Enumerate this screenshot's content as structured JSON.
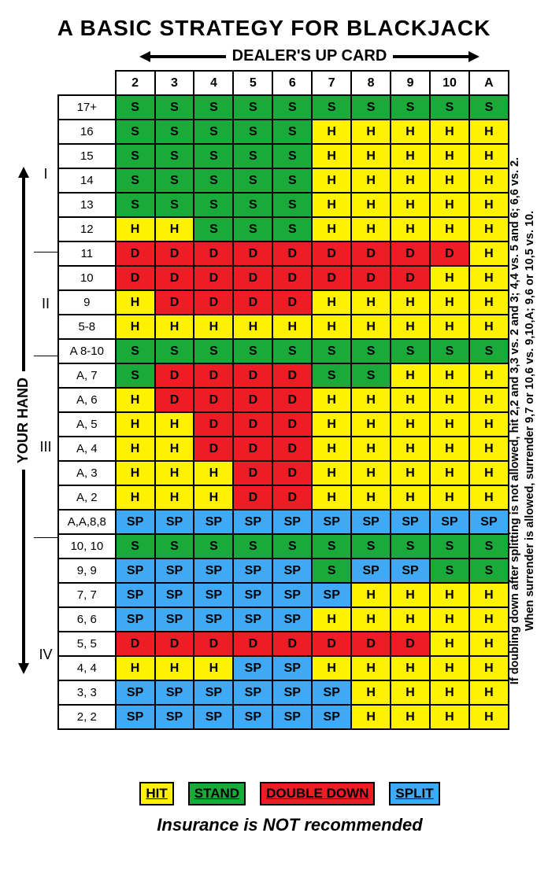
{
  "title": "A BASIC STRATEGY FOR BLACKJACK",
  "dealer_header": "DEALER'S UP CARD",
  "your_hand_label": "YOUR HAND",
  "footer": "Insurance is NOT recommended",
  "sidenote_line1": "If doubling down after splitting is not allowed, hit 2,2 and 3,3 vs. 2 and 3; 4,4 vs. 5 and 6; 6,6 vs. 2.",
  "sidenote_line2": "When surrender is allowed, surrender 9,7 or 10,6 vs. 9,10,A; 9,6 or 10,5 vs. 10.",
  "colors": {
    "H": "#fff200",
    "S": "#1aaa3a",
    "D": "#ee1c25",
    "SP": "#3fa9f5",
    "header_bg": "#ffffff",
    "rowlabel_bg": "#ffffff",
    "border": "#000000",
    "text": "#000000"
  },
  "actions": {
    "H": "H",
    "S": "S",
    "D": "D",
    "SP": "SP"
  },
  "dealer_cards": [
    "2",
    "3",
    "4",
    "5",
    "6",
    "7",
    "8",
    "9",
    "10",
    "A"
  ],
  "sections": [
    {
      "label": "I",
      "rows": 6
    },
    {
      "label": "II",
      "rows": 4
    },
    {
      "label": "III",
      "rows": 7
    },
    {
      "label": "IV",
      "rows": 9
    }
  ],
  "rows": [
    {
      "hand": "17+",
      "cells": [
        "S",
        "S",
        "S",
        "S",
        "S",
        "S",
        "S",
        "S",
        "S",
        "S"
      ]
    },
    {
      "hand": "16",
      "cells": [
        "S",
        "S",
        "S",
        "S",
        "S",
        "H",
        "H",
        "H",
        "H",
        "H"
      ]
    },
    {
      "hand": "15",
      "cells": [
        "S",
        "S",
        "S",
        "S",
        "S",
        "H",
        "H",
        "H",
        "H",
        "H"
      ]
    },
    {
      "hand": "14",
      "cells": [
        "S",
        "S",
        "S",
        "S",
        "S",
        "H",
        "H",
        "H",
        "H",
        "H"
      ]
    },
    {
      "hand": "13",
      "cells": [
        "S",
        "S",
        "S",
        "S",
        "S",
        "H",
        "H",
        "H",
        "H",
        "H"
      ]
    },
    {
      "hand": "12",
      "cells": [
        "H",
        "H",
        "S",
        "S",
        "S",
        "H",
        "H",
        "H",
        "H",
        "H"
      ]
    },
    {
      "hand": "11",
      "cells": [
        "D",
        "D",
        "D",
        "D",
        "D",
        "D",
        "D",
        "D",
        "D",
        "H"
      ]
    },
    {
      "hand": "10",
      "cells": [
        "D",
        "D",
        "D",
        "D",
        "D",
        "D",
        "D",
        "D",
        "H",
        "H"
      ]
    },
    {
      "hand": "9",
      "cells": [
        "H",
        "D",
        "D",
        "D",
        "D",
        "H",
        "H",
        "H",
        "H",
        "H"
      ]
    },
    {
      "hand": "5-8",
      "cells": [
        "H",
        "H",
        "H",
        "H",
        "H",
        "H",
        "H",
        "H",
        "H",
        "H"
      ]
    },
    {
      "hand": "A 8-10",
      "cells": [
        "S",
        "S",
        "S",
        "S",
        "S",
        "S",
        "S",
        "S",
        "S",
        "S"
      ]
    },
    {
      "hand": "A, 7",
      "cells": [
        "S",
        "D",
        "D",
        "D",
        "D",
        "S",
        "S",
        "H",
        "H",
        "H"
      ]
    },
    {
      "hand": "A, 6",
      "cells": [
        "H",
        "D",
        "D",
        "D",
        "D",
        "H",
        "H",
        "H",
        "H",
        "H"
      ]
    },
    {
      "hand": "A, 5",
      "cells": [
        "H",
        "H",
        "D",
        "D",
        "D",
        "H",
        "H",
        "H",
        "H",
        "H"
      ]
    },
    {
      "hand": "A, 4",
      "cells": [
        "H",
        "H",
        "D",
        "D",
        "D",
        "H",
        "H",
        "H",
        "H",
        "H"
      ]
    },
    {
      "hand": "A, 3",
      "cells": [
        "H",
        "H",
        "H",
        "D",
        "D",
        "H",
        "H",
        "H",
        "H",
        "H"
      ]
    },
    {
      "hand": "A, 2",
      "cells": [
        "H",
        "H",
        "H",
        "D",
        "D",
        "H",
        "H",
        "H",
        "H",
        "H"
      ]
    },
    {
      "hand": "A,A,8,8",
      "cells": [
        "SP",
        "SP",
        "SP",
        "SP",
        "SP",
        "SP",
        "SP",
        "SP",
        "SP",
        "SP"
      ]
    },
    {
      "hand": "10, 10",
      "cells": [
        "S",
        "S",
        "S",
        "S",
        "S",
        "S",
        "S",
        "S",
        "S",
        "S"
      ]
    },
    {
      "hand": "9, 9",
      "cells": [
        "SP",
        "SP",
        "SP",
        "SP",
        "SP",
        "S",
        "SP",
        "SP",
        "S",
        "S"
      ]
    },
    {
      "hand": "7, 7",
      "cells": [
        "SP",
        "SP",
        "SP",
        "SP",
        "SP",
        "SP",
        "H",
        "H",
        "H",
        "H"
      ]
    },
    {
      "hand": "6, 6",
      "cells": [
        "SP",
        "SP",
        "SP",
        "SP",
        "SP",
        "H",
        "H",
        "H",
        "H",
        "H"
      ]
    },
    {
      "hand": "5, 5",
      "cells": [
        "D",
        "D",
        "D",
        "D",
        "D",
        "D",
        "D",
        "D",
        "H",
        "H"
      ]
    },
    {
      "hand": "4, 4",
      "cells": [
        "H",
        "H",
        "H",
        "SP",
        "SP",
        "H",
        "H",
        "H",
        "H",
        "H"
      ]
    },
    {
      "hand": "3, 3",
      "cells": [
        "SP",
        "SP",
        "SP",
        "SP",
        "SP",
        "SP",
        "H",
        "H",
        "H",
        "H"
      ]
    },
    {
      "hand": "2, 2",
      "cells": [
        "SP",
        "SP",
        "SP",
        "SP",
        "SP",
        "SP",
        "H",
        "H",
        "H",
        "H"
      ]
    }
  ],
  "legend": [
    {
      "code": "H",
      "label": "HIT"
    },
    {
      "code": "S",
      "label": "STAND"
    },
    {
      "code": "D",
      "label": "DOUBLE DOWN"
    },
    {
      "code": "SP",
      "label": "SPLIT"
    }
  ]
}
